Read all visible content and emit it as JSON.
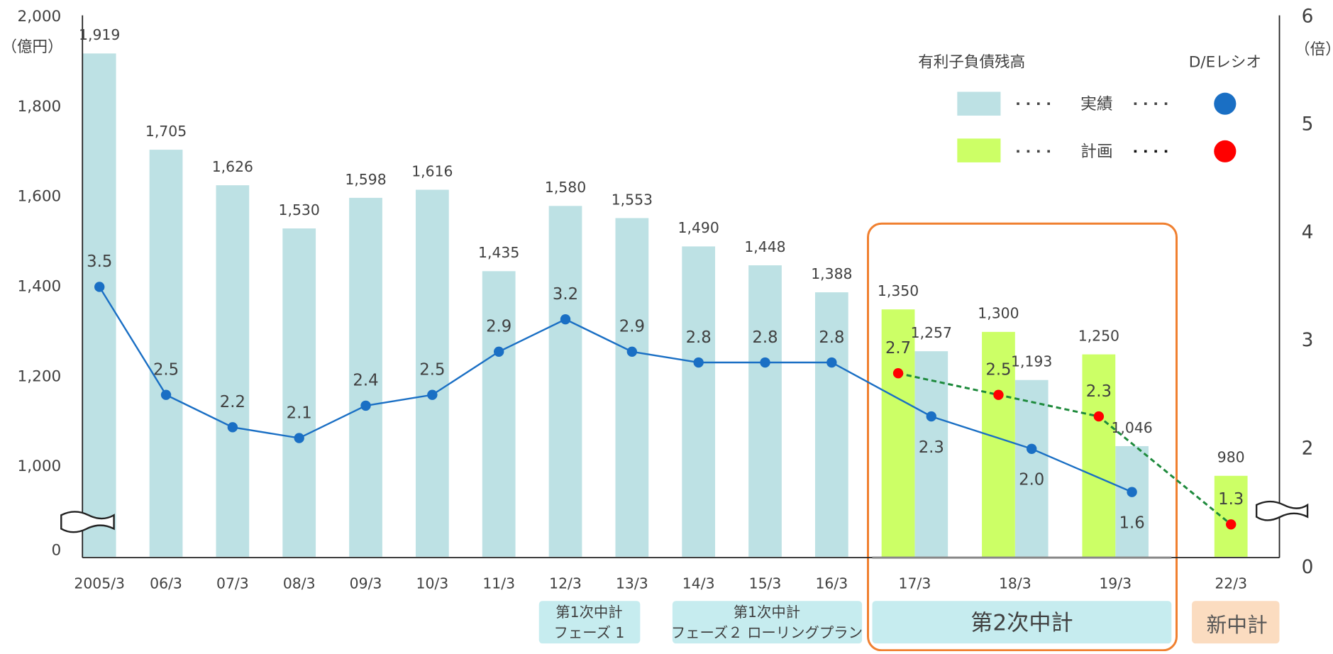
{
  "chart_data": {
    "type": "bar_line",
    "categories": [
      "2005/3",
      "06/3",
      "07/3",
      "08/3",
      "09/3",
      "10/3",
      "11/3",
      "12/3",
      "13/3",
      "14/3",
      "15/3",
      "16/3",
      "17/3",
      "18/3",
      "19/3",
      "22/3"
    ],
    "ylim": [
      0,
      2000
    ],
    "y_axis_break": [
      0,
      800
    ],
    "yticks": [
      0,
      {
        "value": 1000,
        "label": "1,000"
      },
      {
        "value": 1200,
        "label": "1,200"
      },
      {
        "value": 1400,
        "label": "1,400"
      },
      {
        "value": 1600,
        "label": "1,600"
      },
      {
        "value": 1800,
        "label": "1,800"
      },
      {
        "value": 2000,
        "label": "2,000"
      }
    ],
    "y_unit": "（億円）",
    "y2lim": [
      0,
      6
    ],
    "y2_axis_break": [
      0,
      1
    ],
    "y2ticks": [
      0,
      2,
      3,
      4,
      5,
      6
    ],
    "y2_unit": "（倍）",
    "legend": {
      "bar_title": "有利子負債残高",
      "line_title": "D/Eレシオ"
    },
    "series": [
      {
        "name": "実績",
        "kind": "bar",
        "color": "#bde1e4",
        "values": [
          1919,
          1705,
          1626,
          1530,
          1598,
          1616,
          1435,
          1580,
          1553,
          1490,
          1448,
          1388,
          1257,
          1193,
          1046,
          null
        ],
        "value_labels": [
          "1,919",
          "1,705",
          "1,626",
          "1,530",
          "1,598",
          "1,616",
          "1,435",
          "1,580",
          "1,553",
          "1,490",
          "1,448",
          "1,388",
          "1,257",
          "1,193",
          "1,046",
          null
        ]
      },
      {
        "name": "計画",
        "kind": "bar",
        "color": "#ccff66",
        "values": [
          null,
          null,
          null,
          null,
          null,
          null,
          null,
          null,
          null,
          null,
          null,
          null,
          1350,
          1300,
          1250,
          980
        ],
        "value_labels": [
          null,
          null,
          null,
          null,
          null,
          null,
          null,
          null,
          null,
          null,
          null,
          null,
          "1,350",
          "1,300",
          "1,250",
          "980"
        ]
      },
      {
        "name": "実績",
        "kind": "line",
        "axis": "y2",
        "color": "#1a6fc4",
        "values": [
          3.5,
          2.5,
          2.2,
          2.1,
          2.4,
          2.5,
          2.9,
          3.2,
          2.9,
          2.8,
          2.8,
          2.8,
          2.3,
          2.0,
          1.6,
          null
        ],
        "value_labels": [
          "3.5",
          "2.5",
          "2.2",
          "2.1",
          "2.4",
          "2.5",
          "2.9",
          "3.2",
          "2.9",
          "2.8",
          "2.8",
          "2.8",
          "2.3",
          "2.0",
          "1.6",
          null
        ]
      },
      {
        "name": "計画",
        "kind": "line",
        "axis": "y2",
        "color": "#ff0000",
        "line_color": "#1e8a3c",
        "dashed": true,
        "values": [
          null,
          null,
          null,
          null,
          null,
          null,
          null,
          null,
          null,
          null,
          null,
          null,
          2.7,
          2.5,
          2.3,
          1.3
        ],
        "value_labels": [
          null,
          null,
          null,
          null,
          null,
          null,
          null,
          null,
          null,
          null,
          null,
          null,
          "2.7",
          "2.5",
          "2.3",
          "1.3"
        ]
      }
    ],
    "periods": [
      {
        "lines": [
          "第1次中計",
          "フェーズ 1"
        ]
      },
      {
        "lines": [
          "第1次中計",
          "フェーズ２ ローリングプラン"
        ]
      },
      {
        "lines": [
          "第2次中計"
        ]
      },
      {
        "lines": [
          "新中計"
        ]
      }
    ]
  }
}
